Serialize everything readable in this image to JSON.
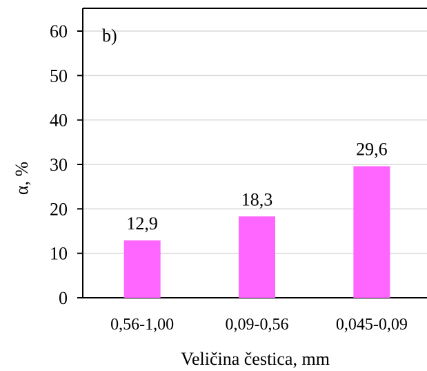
{
  "chart_data": {
    "type": "bar",
    "panel_label": "b)",
    "categories": [
      "0,56-1,00",
      "0,09-0,56",
      "0,045-0,09"
    ],
    "values": [
      12.9,
      18.3,
      29.6
    ],
    "data_labels": [
      "12,9",
      "18,3",
      "29,6"
    ],
    "xlabel": "Veličina čestica, mm",
    "ylabel": "α, %",
    "ylim": [
      0,
      60
    ],
    "yticks": [
      0,
      10,
      20,
      30,
      40,
      50,
      60
    ],
    "grid": true,
    "legend": "none",
    "bar_color": "#ff66ff"
  }
}
